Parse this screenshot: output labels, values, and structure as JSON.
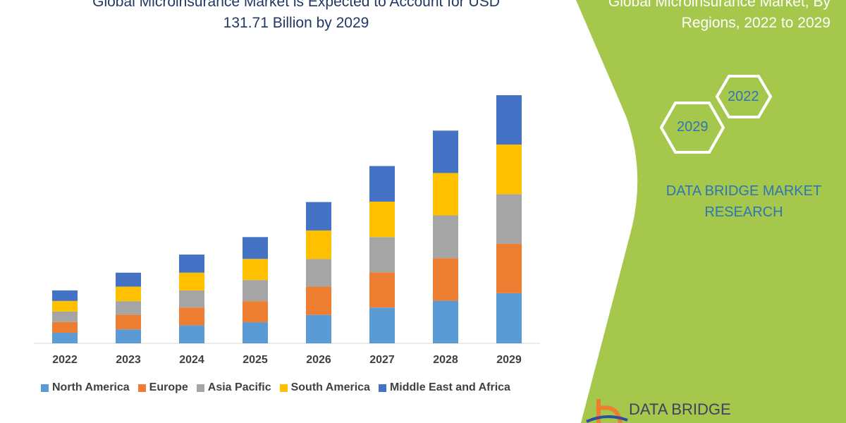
{
  "header": {
    "title_line1": "Global Microinsurance Market is Expected to Account for USD",
    "title_line2": "131.71 Billion by 2029"
  },
  "side_panel": {
    "title_line1": "Global Microinsurance Market, By",
    "title_line2": "Regions, 2022 to 2029",
    "hex_years": [
      "2029",
      "2022"
    ],
    "brand_line1": "DATA BRIDGE MARKET",
    "brand_line2": "RESEARCH",
    "logo_text": "DATA BRIDGE",
    "panel_color": "#a5c74c"
  },
  "chart_data": {
    "type": "bar",
    "stacked": true,
    "title": "",
    "xlabel": "",
    "ylabel": "",
    "ylim": [
      0,
      131.71
    ],
    "grid": false,
    "legend_position": "bottom",
    "categories": [
      "2022",
      "2023",
      "2024",
      "2025",
      "2026",
      "2027",
      "2028",
      "2029"
    ],
    "series": [
      {
        "name": "North America",
        "color": "#5b9bd5",
        "values": [
          5.6,
          7.4,
          9.6,
          11.2,
          15.1,
          19.0,
          22.6,
          26.6
        ]
      },
      {
        "name": "Europe",
        "color": "#ed7d31",
        "values": [
          5.7,
          7.8,
          9.4,
          11.2,
          15.0,
          18.7,
          22.6,
          26.2
        ]
      },
      {
        "name": "Asia Pacific",
        "color": "#a5a5a5",
        "values": [
          5.6,
          7.2,
          9.1,
          11.2,
          14.7,
          18.7,
          22.7,
          26.4
        ]
      },
      {
        "name": "South America",
        "color": "#ffc000",
        "values": [
          5.6,
          7.7,
          9.4,
          11.2,
          15.1,
          18.8,
          22.5,
          26.3
        ]
      },
      {
        "name": "Middle East and Africa",
        "color": "#4472c4",
        "values": [
          5.6,
          7.4,
          9.6,
          11.6,
          15.1,
          18.9,
          22.5,
          26.2
        ]
      }
    ]
  }
}
